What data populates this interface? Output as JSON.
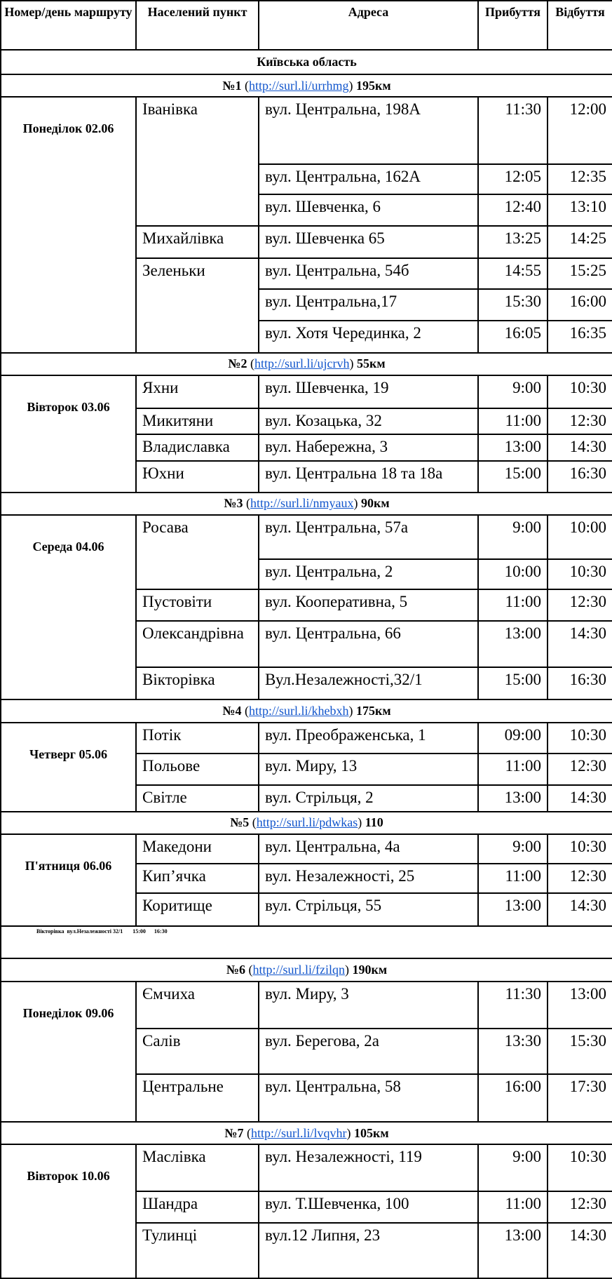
{
  "table": {
    "header": [
      "Номер/день маршруту",
      "Населений пункт",
      "Адреса",
      "Прибуття",
      "Відбуття"
    ],
    "region": "Київська область",
    "routes": [
      {
        "number": "№1",
        "link": "http://surl.li/urrhmg",
        "distance": "195км",
        "day": "Понеділок 02.06",
        "villages": [
          {
            "name": "Іванівка",
            "stops": [
              {
                "address": "вул. Центральна, 198А",
                "arrive": "11:30",
                "depart": "12:00"
              },
              {
                "address": "вул. Центральна, 162А",
                "arrive": "12:05",
                "depart": "12:35"
              },
              {
                "address": "вул. Шевченка, 6",
                "arrive": "12:40",
                "depart": "13:10"
              }
            ]
          },
          {
            "name": "Михайлівка",
            "stops": [
              {
                "address": "вул. Шевченка 65",
                "arrive": "13:25",
                "depart": "14:25"
              }
            ]
          },
          {
            "name": "Зеленьки",
            "stops": [
              {
                "address": "вул. Центральна, 54б",
                "arrive": "14:55",
                "depart": "15:25"
              },
              {
                "address": "вул. Центральна,17",
                "arrive": "15:30",
                "depart": "16:00"
              },
              {
                "address": "вул. Хотя Черединка,  2",
                "arrive": "16:05",
                "depart": "16:35"
              }
            ]
          }
        ]
      },
      {
        "number": "№2",
        "link": "http://surl.li/ujcrvh",
        "distance": "55км",
        "day": "Вівторок 03.06",
        "villages": [
          {
            "name": "Яхни",
            "stops": [
              {
                "address": "вул. Шевченка, 19",
                "arrive": "9:00",
                "depart": "10:30"
              }
            ]
          },
          {
            "name": "Микитяни",
            "stops": [
              {
                "address": "вул. Козацька, 32",
                "arrive": "11:00",
                "depart": "12:30"
              }
            ]
          },
          {
            "name": "Владиславка",
            "stops": [
              {
                "address": "вул. Набережна, 3",
                "arrive": "13:00",
                "depart": "14:30"
              }
            ]
          },
          {
            "name": "Юхни",
            "stops": [
              {
                "address": "вул. Центральна 18  та 18а",
                "arrive": "15:00",
                "depart": "16:30"
              }
            ]
          }
        ]
      },
      {
        "number": "№3",
        "link": "http://surl.li/nmyaux",
        "distance": "90км",
        "day": "Середа 04.06",
        "villages": [
          {
            "name": "Росава",
            "stops": [
              {
                "address": "вул. Центральна, 57а",
                "arrive": "9:00",
                "depart": "10:00"
              },
              {
                "address": "вул. Центральна, 2",
                "arrive": "10:00",
                "depart": "10:30"
              }
            ]
          },
          {
            "name": "Пустовіти",
            "stops": [
              {
                "address": "вул. Кооперативна, 5",
                "arrive": "11:00",
                "depart": "12:30"
              }
            ]
          },
          {
            "name": "Олександрівна",
            "stops": [
              {
                "address": "вул. Центральна, 66",
                "arrive": "13:00",
                "depart": "14:30"
              }
            ]
          },
          {
            "name": "Вікторівка",
            "stops": [
              {
                "address": "Вул.Незалежності,32/1",
                "arrive": "15:00",
                "depart": "16:30"
              }
            ]
          }
        ]
      },
      {
        "number": "№4",
        "link": "http://surl.li/khebxh",
        "distance": "175км",
        "day": "Четверг 05.06",
        "villages": [
          {
            "name": "Потік",
            "stops": [
              {
                "address": "вул. Преображенська, 1",
                "arrive": "09:00",
                "depart": "10:30"
              }
            ]
          },
          {
            "name": "Польове",
            "stops": [
              {
                "address": "вул. Миру, 13",
                "arrive": "11:00",
                "depart": "12:30"
              }
            ]
          },
          {
            "name": "Світле",
            "stops": [
              {
                "address": "вул. Стрільця, 2",
                "arrive": "13:00",
                "depart": "14:30"
              }
            ]
          }
        ]
      },
      {
        "number": "№5",
        "link": "http://surl.li/pdwkas",
        "distance": "110",
        "day": "П'ятниця 06.06",
        "villages": [
          {
            "name": "Македони",
            "stops": [
              {
                "address": "вул. Центральна, 4а",
                "arrive": "9:00",
                "depart": "10:30"
              }
            ]
          },
          {
            "name": "Кип’ячка",
            "stops": [
              {
                "address": "вул. Незалежності, 25",
                "arrive": "11:00",
                "depart": "12:30"
              }
            ]
          },
          {
            "name": "Коритище",
            "stops": [
              {
                "address": "вул. Стрільця, 55",
                "arrive": "13:00",
                "depart": "14:30"
              }
            ]
          }
        ],
        "note": "Вікторівка  вул.Незалежності 32/1       15:00      16:30"
      },
      {
        "number": "№6",
        "link": "http://surl.li/fzilqn",
        "distance": "190км",
        "day": "Понеділок 09.06",
        "villages": [
          {
            "name": "Ємчиха",
            "stops": [
              {
                "address": "вул. Миру, 3",
                "arrive": "11:30",
                "depart": "13:00"
              }
            ]
          },
          {
            "name": "Салів",
            "stops": [
              {
                "address": "вул. Берегова, 2а",
                "arrive": "13:30",
                "depart": "15:30"
              }
            ]
          },
          {
            "name": "Центральне",
            "stops": [
              {
                "address": "вул. Центральна, 58",
                "arrive": "16:00",
                "depart": "17:30"
              }
            ]
          }
        ]
      },
      {
        "number": "№7",
        "link": "http://surl.li/lvqvhr",
        "distance": "105км",
        "day": "Вівторок 10.06",
        "villages": [
          {
            "name": "Маслівка",
            "stops": [
              {
                "address": "вул. Незалежності, 119",
                "arrive": "9:00",
                "depart": "10:30"
              }
            ]
          },
          {
            "name": "Шандра",
            "stops": [
              {
                "address": "вул. Т.Шевченка, 100",
                "arrive": "11:00",
                "depart": "12:30"
              }
            ]
          },
          {
            "name": "Тулинці",
            "stops": [
              {
                "address": "вул.12 Липня, 23",
                "arrive": "13:00",
                "depart": "14:30"
              }
            ]
          }
        ]
      }
    ]
  }
}
